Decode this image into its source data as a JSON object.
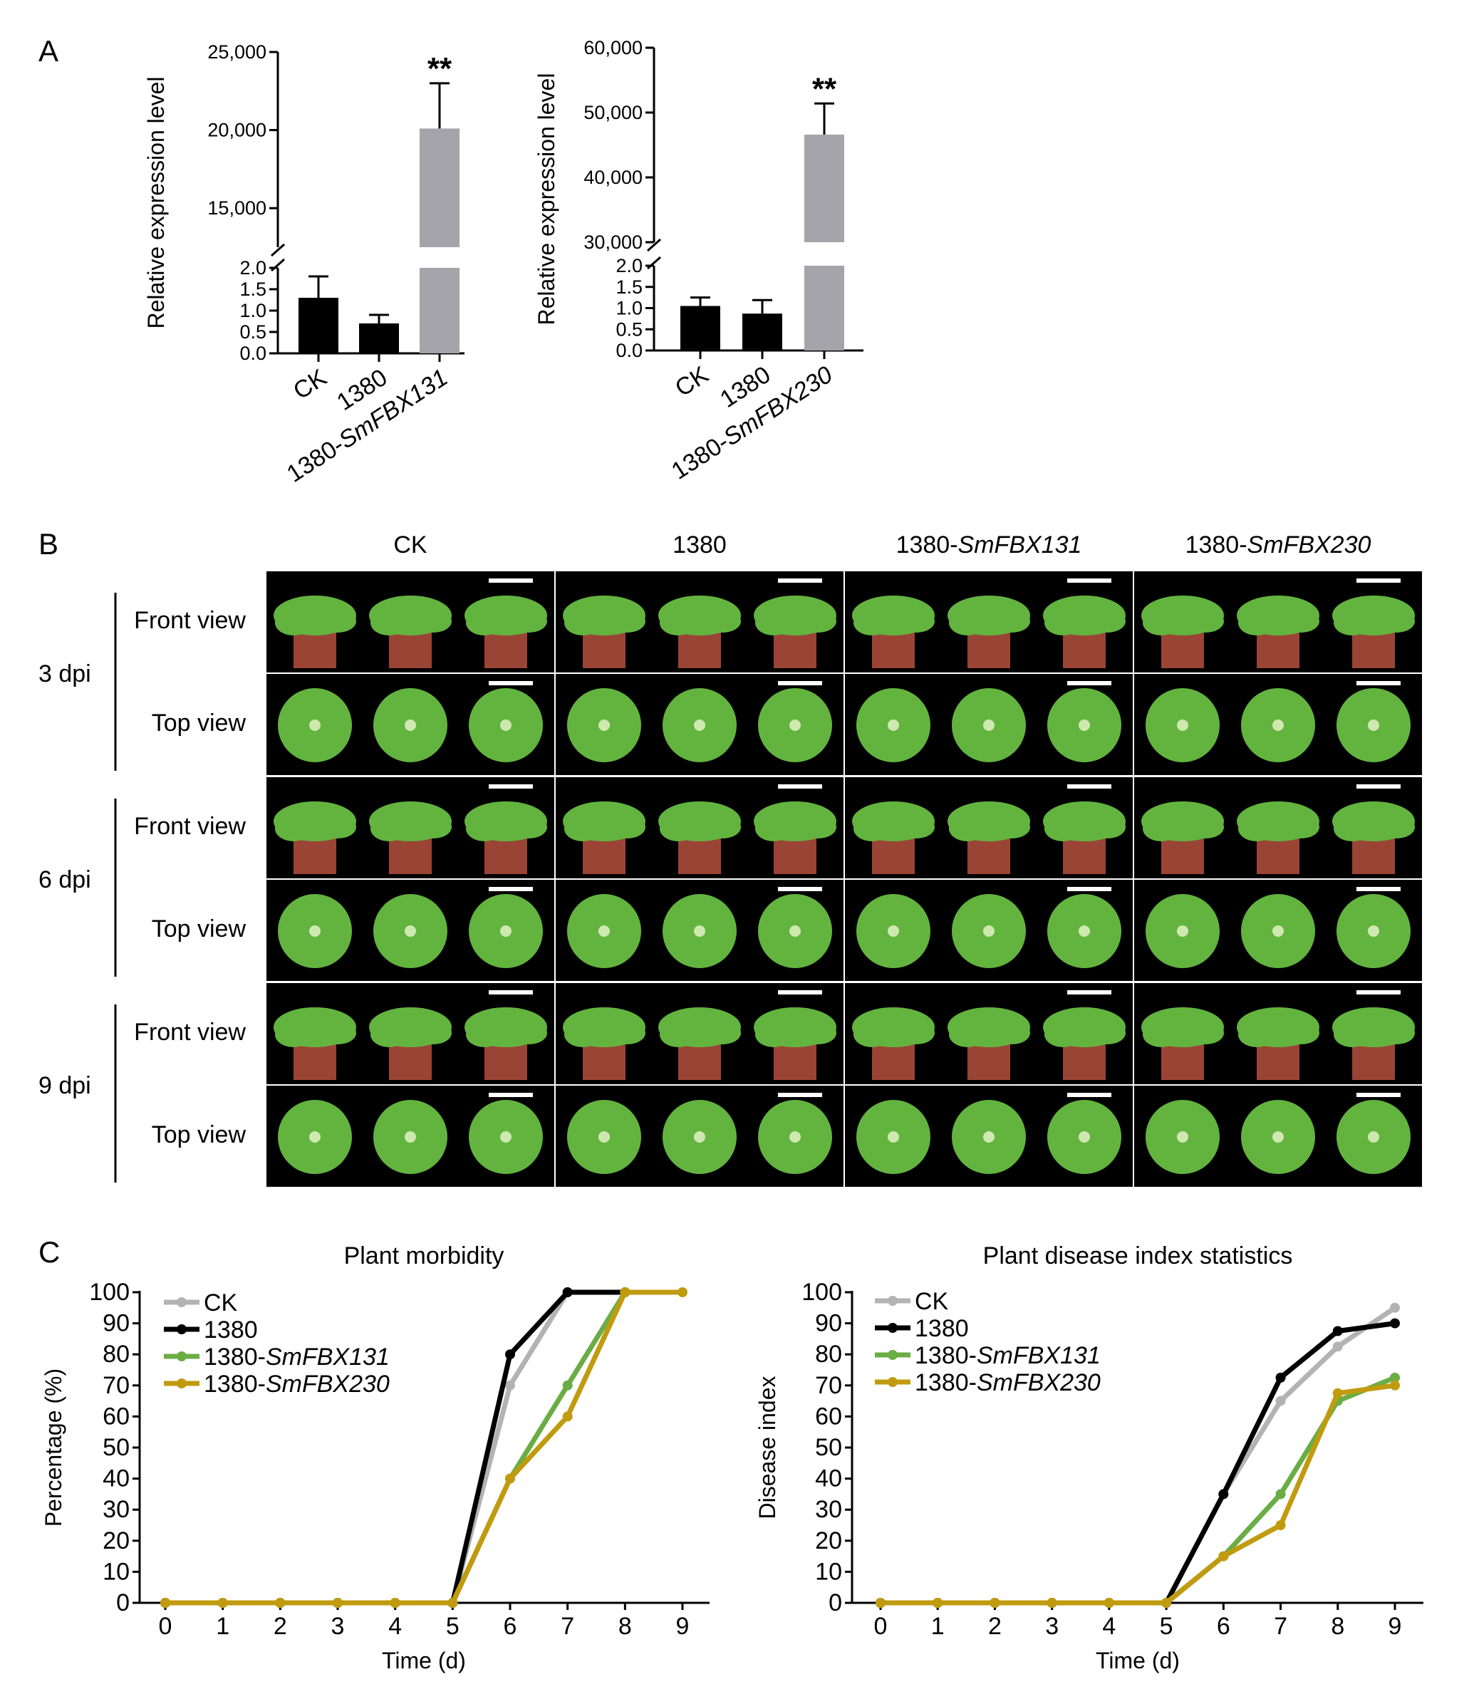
{
  "panels": {
    "A": "A",
    "B": "B",
    "C": "C"
  },
  "colors": {
    "ck": "#b3b3b3",
    "v1380": "#000000",
    "smfbx131": "#6aad45",
    "smfbx230": "#c19b0f",
    "overexpressed_bar": "#a4a4aa",
    "black_bar": "#000000",
    "leaf": "#63b43f",
    "pot": "#b5503e"
  },
  "panel_b": {
    "columns": [
      "CK",
      "1380",
      "1380-SmFBX131",
      "1380-SmFBX230"
    ],
    "column_parts": [
      {
        "plain": "CK",
        "italic": ""
      },
      {
        "plain": "1380",
        "italic": ""
      },
      {
        "plain": "1380-",
        "italic": "SmFBX131"
      },
      {
        "plain": "1380-",
        "italic": "SmFBX230"
      }
    ],
    "timepoints": [
      "3 dpi",
      "6 dpi",
      "9 dpi"
    ],
    "views": [
      "Front view",
      "Top view"
    ]
  },
  "chart_data": [
    {
      "type": "bar",
      "panel": "A",
      "categories": [
        "CK",
        "1380",
        "1380-SmFBX131"
      ],
      "category_parts": [
        {
          "plain": "CK",
          "italic": ""
        },
        {
          "plain": "1380",
          "italic": ""
        },
        {
          "plain": "1380-",
          "italic": "SmFBX131"
        }
      ],
      "values": [
        1.3,
        0.7,
        20100
      ],
      "errors": [
        0.5,
        0.2,
        2900
      ],
      "significance": [
        "",
        "",
        "**"
      ],
      "ylabel": "Relative expression level",
      "broken_axis": true,
      "lower_ylim": [
        0,
        2.0
      ],
      "lower_ticks": [
        "0.0",
        "0.5",
        "1.0",
        "1.5",
        "2.0"
      ],
      "upper_ylim": [
        12500,
        25000
      ],
      "upper_ticks": [
        "15,000",
        "20,000",
        "25,000"
      ]
    },
    {
      "type": "bar",
      "panel": "A",
      "categories": [
        "CK",
        "1380",
        "1380-SmFBX230"
      ],
      "category_parts": [
        {
          "plain": "CK",
          "italic": ""
        },
        {
          "plain": "1380",
          "italic": ""
        },
        {
          "plain": "1380-",
          "italic": "SmFBX230"
        }
      ],
      "values": [
        1.05,
        0.87,
        46600
      ],
      "errors": [
        0.2,
        0.32,
        4800
      ],
      "significance": [
        "",
        "",
        "**"
      ],
      "ylabel": "Relative expression level",
      "broken_axis": true,
      "lower_ylim": [
        0,
        2.0
      ],
      "lower_ticks": [
        "0.0",
        "0.5",
        "1.0",
        "1.5",
        "2.0"
      ],
      "upper_ylim": [
        30000,
        60000
      ],
      "upper_ticks": [
        "30,000",
        "40,000",
        "50,000",
        "60,000"
      ]
    },
    {
      "type": "line",
      "panel": "C",
      "title": "Plant morbidity",
      "xlabel": "Time (d)",
      "ylabel": "Percentage (%)",
      "x": [
        0,
        1,
        2,
        3,
        4,
        5,
        6,
        7,
        8,
        9
      ],
      "xlim": [
        0,
        9
      ],
      "ylim": [
        0,
        100
      ],
      "yticks": [
        0,
        10,
        20,
        30,
        40,
        50,
        60,
        70,
        80,
        90,
        100
      ],
      "legend_position": "top-left",
      "series": [
        {
          "name": "CK",
          "name_plain": "CK",
          "name_italic": "",
          "color": "#b3b3b3",
          "values": [
            0,
            0,
            0,
            0,
            0,
            0,
            70,
            100,
            null,
            null
          ]
        },
        {
          "name": "1380",
          "name_plain": "1380",
          "name_italic": "",
          "color": "#000000",
          "values": [
            0,
            0,
            0,
            0,
            0,
            0,
            80,
            100,
            100,
            null
          ]
        },
        {
          "name": "1380-SmFBX131",
          "name_plain": "1380-",
          "name_italic": "SmFBX131",
          "color": "#6aad45",
          "values": [
            0,
            0,
            0,
            0,
            0,
            0,
            40,
            70,
            100,
            null
          ]
        },
        {
          "name": "1380-SmFBX230",
          "name_plain": "1380-",
          "name_italic": "SmFBX230",
          "color": "#c19b0f",
          "values": [
            0,
            0,
            0,
            0,
            0,
            0,
            40,
            60,
            100,
            100
          ]
        }
      ]
    },
    {
      "type": "line",
      "panel": "C",
      "title": "Plant disease index statistics",
      "xlabel": "Time (d)",
      "ylabel": "Disease index",
      "x": [
        0,
        1,
        2,
        3,
        4,
        5,
        6,
        7,
        8,
        9
      ],
      "xlim": [
        0,
        9
      ],
      "ylim": [
        0,
        100
      ],
      "yticks": [
        0,
        10,
        20,
        30,
        40,
        50,
        60,
        70,
        80,
        90,
        100
      ],
      "legend_position": "top-left",
      "series": [
        {
          "name": "CK",
          "name_plain": "CK",
          "name_italic": "",
          "color": "#b3b3b3",
          "values": [
            0,
            0,
            0,
            0,
            0,
            0,
            35,
            65,
            82.5,
            95
          ]
        },
        {
          "name": "1380",
          "name_plain": "1380",
          "name_italic": "",
          "color": "#000000",
          "values": [
            0,
            0,
            0,
            0,
            0,
            0,
            35,
            72.5,
            87.5,
            90
          ]
        },
        {
          "name": "1380-SmFBX131",
          "name_plain": "1380-",
          "name_italic": "SmFBX131",
          "color": "#6aad45",
          "values": [
            0,
            0,
            0,
            0,
            0,
            0,
            15,
            35,
            65,
            72.5
          ]
        },
        {
          "name": "1380-SmFBX230",
          "name_plain": "1380-",
          "name_italic": "SmFBX230",
          "color": "#c19b0f",
          "values": [
            0,
            0,
            0,
            0,
            0,
            0,
            15,
            25,
            67.5,
            70
          ]
        }
      ]
    }
  ]
}
